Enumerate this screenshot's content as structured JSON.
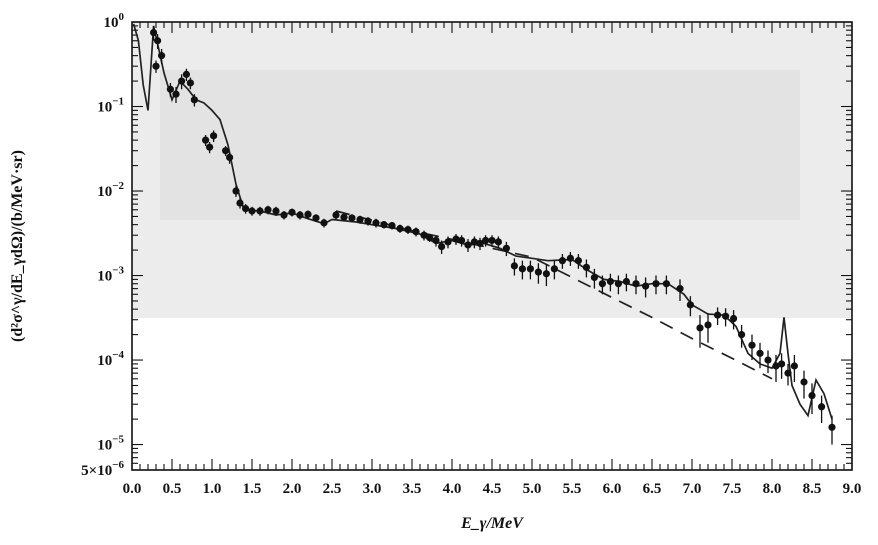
{
  "chart_data": {
    "type": "scatter",
    "title": "",
    "xlabel": "E_γ/MeV",
    "ylabel": "(d²σ^γ/dE_γdΩ)/(b/MeV·sr)",
    "xlim": [
      0,
      9
    ],
    "ylim": [
      5e-06,
      1
    ],
    "yscale": "log",
    "grid": false,
    "legend": "none",
    "x_ticks": [
      {
        "value": 0.0,
        "label": "0.0"
      },
      {
        "value": 0.5,
        "label": "0.5"
      },
      {
        "value": 1.0,
        "label": "1.0"
      },
      {
        "value": 1.5,
        "label": "1.5"
      },
      {
        "value": 2.0,
        "label": "2.0"
      },
      {
        "value": 2.5,
        "label": "2.5"
      },
      {
        "value": 3.0,
        "label": "3.0"
      },
      {
        "value": 3.5,
        "label": "3.5"
      },
      {
        "value": 4.0,
        "label": "4.0"
      },
      {
        "value": 4.5,
        "label": "4.5"
      },
      {
        "value": 5.0,
        "label": "5.0"
      },
      {
        "value": 5.5,
        "label": "5.5"
      },
      {
        "value": 6.0,
        "label": "6.0"
      },
      {
        "value": 6.5,
        "label": "6.5"
      },
      {
        "value": 7.0,
        "label": "7.0"
      },
      {
        "value": 7.5,
        "label": "7.5"
      },
      {
        "value": 8.0,
        "label": "8.0"
      },
      {
        "value": 8.5,
        "label": "8.5"
      },
      {
        "value": 9.0,
        "label": "9.0"
      }
    ],
    "y_ticks": [
      {
        "value": 1,
        "base": "10",
        "exp": "0"
      },
      {
        "value": 0.1,
        "base": "10",
        "exp": "−1"
      },
      {
        "value": 0.01,
        "base": "10",
        "exp": "−2"
      },
      {
        "value": 0.001,
        "base": "10",
        "exp": "−3"
      },
      {
        "value": 0.0001,
        "base": "10",
        "exp": "−4"
      },
      {
        "value": 1e-05,
        "base": "10",
        "exp": "−5"
      },
      {
        "value": 5e-06,
        "base": "5×10",
        "exp": "−6"
      }
    ],
    "series": [
      {
        "style": "markers-with-error-bars",
        "color": "#111111",
        "points": [
          {
            "x": 0.27,
            "y": 0.75,
            "err": 0.15
          },
          {
            "x": 0.32,
            "y": 0.6,
            "err": 0.12
          },
          {
            "x": 0.37,
            "y": 0.4,
            "err": 0.08
          },
          {
            "x": 0.3,
            "y": 0.3,
            "err": 0.05
          },
          {
            "x": 0.48,
            "y": 0.16,
            "err": 0.03
          },
          {
            "x": 0.55,
            "y": 0.14,
            "err": 0.03
          },
          {
            "x": 0.62,
            "y": 0.2,
            "err": 0.04
          },
          {
            "x": 0.68,
            "y": 0.24,
            "err": 0.04
          },
          {
            "x": 0.73,
            "y": 0.19,
            "err": 0.03
          },
          {
            "x": 0.78,
            "y": 0.12,
            "err": 0.02
          },
          {
            "x": 0.92,
            "y": 0.04,
            "err": 0.006
          },
          {
            "x": 0.97,
            "y": 0.033,
            "err": 0.005
          },
          {
            "x": 1.02,
            "y": 0.045,
            "err": 0.007
          },
          {
            "x": 1.17,
            "y": 0.03,
            "err": 0.004
          },
          {
            "x": 1.22,
            "y": 0.025,
            "err": 0.004
          },
          {
            "x": 1.3,
            "y": 0.01,
            "err": 0.0015
          },
          {
            "x": 1.35,
            "y": 0.0072,
            "err": 0.001
          },
          {
            "x": 1.42,
            "y": 0.0062,
            "err": 0.0008
          },
          {
            "x": 1.5,
            "y": 0.0058,
            "err": 0.0007
          },
          {
            "x": 1.6,
            "y": 0.0058,
            "err": 0.0007
          },
          {
            "x": 1.7,
            "y": 0.006,
            "err": 0.0007
          },
          {
            "x": 1.8,
            "y": 0.0058,
            "err": 0.0007
          },
          {
            "x": 1.9,
            "y": 0.0052,
            "err": 0.0006
          },
          {
            "x": 2.0,
            "y": 0.0056,
            "err": 0.0006
          },
          {
            "x": 2.1,
            "y": 0.0052,
            "err": 0.0006
          },
          {
            "x": 2.2,
            "y": 0.0053,
            "err": 0.0006
          },
          {
            "x": 2.3,
            "y": 0.0048,
            "err": 0.0005
          },
          {
            "x": 2.4,
            "y": 0.0042,
            "err": 0.0005
          },
          {
            "x": 2.55,
            "y": 0.0052,
            "err": 0.0006
          },
          {
            "x": 2.65,
            "y": 0.0049,
            "err": 0.0005
          },
          {
            "x": 2.75,
            "y": 0.0048,
            "err": 0.0005
          },
          {
            "x": 2.85,
            "y": 0.0046,
            "err": 0.0005
          },
          {
            "x": 2.95,
            "y": 0.0044,
            "err": 0.0005
          },
          {
            "x": 3.05,
            "y": 0.0042,
            "err": 0.0005
          },
          {
            "x": 3.15,
            "y": 0.004,
            "err": 0.0004
          },
          {
            "x": 3.25,
            "y": 0.0039,
            "err": 0.0004
          },
          {
            "x": 3.35,
            "y": 0.0036,
            "err": 0.0004
          },
          {
            "x": 3.45,
            "y": 0.0035,
            "err": 0.0004
          },
          {
            "x": 3.55,
            "y": 0.0033,
            "err": 0.0004
          },
          {
            "x": 3.65,
            "y": 0.003,
            "err": 0.0004
          },
          {
            "x": 3.72,
            "y": 0.0028,
            "err": 0.0003
          },
          {
            "x": 3.8,
            "y": 0.0026,
            "err": 0.0004
          },
          {
            "x": 3.87,
            "y": 0.0022,
            "err": 0.0004
          },
          {
            "x": 3.95,
            "y": 0.0025,
            "err": 0.0004
          },
          {
            "x": 4.05,
            "y": 0.0027,
            "err": 0.0004
          },
          {
            "x": 4.12,
            "y": 0.0026,
            "err": 0.0004
          },
          {
            "x": 4.2,
            "y": 0.0023,
            "err": 0.0004
          },
          {
            "x": 4.28,
            "y": 0.0025,
            "err": 0.0004
          },
          {
            "x": 4.35,
            "y": 0.0024,
            "err": 0.0004
          },
          {
            "x": 4.42,
            "y": 0.0026,
            "err": 0.0004
          },
          {
            "x": 4.5,
            "y": 0.0026,
            "err": 0.0004
          },
          {
            "x": 4.58,
            "y": 0.0025,
            "err": 0.0004
          },
          {
            "x": 4.68,
            "y": 0.0021,
            "err": 0.0004
          },
          {
            "x": 4.78,
            "y": 0.0013,
            "err": 0.0003
          },
          {
            "x": 4.88,
            "y": 0.0012,
            "err": 0.0003
          },
          {
            "x": 4.98,
            "y": 0.0012,
            "err": 0.0003
          },
          {
            "x": 5.08,
            "y": 0.0011,
            "err": 0.0003
          },
          {
            "x": 5.18,
            "y": 0.00105,
            "err": 0.0003
          },
          {
            "x": 5.28,
            "y": 0.0012,
            "err": 0.0003
          },
          {
            "x": 5.38,
            "y": 0.0015,
            "err": 0.0003
          },
          {
            "x": 5.48,
            "y": 0.0016,
            "err": 0.0003
          },
          {
            "x": 5.58,
            "y": 0.0015,
            "err": 0.0003
          },
          {
            "x": 5.68,
            "y": 0.00125,
            "err": 0.0003
          },
          {
            "x": 5.78,
            "y": 0.00095,
            "err": 0.00025
          },
          {
            "x": 5.88,
            "y": 0.0008,
            "err": 0.0002
          },
          {
            "x": 5.98,
            "y": 0.00085,
            "err": 0.0002
          },
          {
            "x": 6.08,
            "y": 0.0008,
            "err": 0.0002
          },
          {
            "x": 6.18,
            "y": 0.00085,
            "err": 0.0002
          },
          {
            "x": 6.3,
            "y": 0.0008,
            "err": 0.0002
          },
          {
            "x": 6.42,
            "y": 0.00075,
            "err": 0.0002
          },
          {
            "x": 6.55,
            "y": 0.0008,
            "err": 0.0002
          },
          {
            "x": 6.68,
            "y": 0.0008,
            "err": 0.0002
          },
          {
            "x": 6.85,
            "y": 0.0007,
            "err": 0.0002
          },
          {
            "x": 6.98,
            "y": 0.00045,
            "err": 0.00012
          },
          {
            "x": 7.1,
            "y": 0.00024,
            "err": 0.0001
          },
          {
            "x": 7.2,
            "y": 0.00026,
            "err": 0.0001
          },
          {
            "x": 7.32,
            "y": 0.00034,
            "err": 8e-05
          },
          {
            "x": 7.42,
            "y": 0.00033,
            "err": 8e-05
          },
          {
            "x": 7.52,
            "y": 0.00031,
            "err": 8e-05
          },
          {
            "x": 7.62,
            "y": 0.0002,
            "err": 6e-05
          },
          {
            "x": 7.75,
            "y": 0.00015,
            "err": 5e-05
          },
          {
            "x": 7.85,
            "y": 0.00012,
            "err": 4e-05
          },
          {
            "x": 7.95,
            "y": 0.0001,
            "err": 3e-05
          },
          {
            "x": 8.05,
            "y": 8.5e-05,
            "err": 3e-05
          },
          {
            "x": 8.12,
            "y": 9e-05,
            "err": 3e-05
          },
          {
            "x": 8.2,
            "y": 7e-05,
            "err": 2e-05
          },
          {
            "x": 8.28,
            "y": 8.5e-05,
            "err": 3e-05
          },
          {
            "x": 8.4,
            "y": 5.5e-05,
            "err": 2e-05
          },
          {
            "x": 8.5,
            "y": 3.8e-05,
            "err": 1.5e-05
          },
          {
            "x": 8.62,
            "y": 2.8e-05,
            "err": 1e-05
          },
          {
            "x": 8.75,
            "y": 1.6e-05,
            "err": 6e-06
          }
        ]
      },
      {
        "style": "solid-line",
        "color": "#222222",
        "points": [
          {
            "x": 0.02,
            "y": 0.95
          },
          {
            "x": 0.08,
            "y": 0.6
          },
          {
            "x": 0.14,
            "y": 0.18
          },
          {
            "x": 0.2,
            "y": 0.09
          },
          {
            "x": 0.27,
            "y": 0.9
          },
          {
            "x": 0.33,
            "y": 0.5
          },
          {
            "x": 0.4,
            "y": 0.25
          },
          {
            "x": 0.5,
            "y": 0.12
          },
          {
            "x": 0.6,
            "y": 0.2
          },
          {
            "x": 0.7,
            "y": 0.16
          },
          {
            "x": 0.8,
            "y": 0.12
          },
          {
            "x": 0.9,
            "y": 0.11
          },
          {
            "x": 1.0,
            "y": 0.09
          },
          {
            "x": 1.1,
            "y": 0.07
          },
          {
            "x": 1.2,
            "y": 0.035
          },
          {
            "x": 1.3,
            "y": 0.012
          },
          {
            "x": 1.4,
            "y": 0.006
          },
          {
            "x": 1.6,
            "y": 0.0058
          },
          {
            "x": 1.8,
            "y": 0.0052
          },
          {
            "x": 2.0,
            "y": 0.0055
          },
          {
            "x": 2.2,
            "y": 0.0047
          },
          {
            "x": 2.4,
            "y": 0.0041
          },
          {
            "x": 2.5,
            "y": 0.0046
          },
          {
            "x": 2.8,
            "y": 0.0043
          },
          {
            "x": 3.0,
            "y": 0.004
          },
          {
            "x": 3.3,
            "y": 0.0036
          },
          {
            "x": 3.6,
            "y": 0.0031
          },
          {
            "x": 3.8,
            "y": 0.0024
          },
          {
            "x": 4.0,
            "y": 0.0026
          },
          {
            "x": 4.2,
            "y": 0.0023
          },
          {
            "x": 4.4,
            "y": 0.0024
          },
          {
            "x": 4.6,
            "y": 0.0021
          },
          {
            "x": 4.8,
            "y": 0.0017
          },
          {
            "x": 5.0,
            "y": 0.0016
          },
          {
            "x": 5.2,
            "y": 0.0015
          },
          {
            "x": 5.5,
            "y": 0.00155
          },
          {
            "x": 5.7,
            "y": 0.00115
          },
          {
            "x": 5.9,
            "y": 0.0009
          },
          {
            "x": 6.1,
            "y": 0.00085
          },
          {
            "x": 6.3,
            "y": 0.00075
          },
          {
            "x": 6.5,
            "y": 0.0008
          },
          {
            "x": 6.7,
            "y": 0.0008
          },
          {
            "x": 6.9,
            "y": 0.0006
          },
          {
            "x": 7.0,
            "y": 0.00045
          },
          {
            "x": 7.2,
            "y": 0.00035
          },
          {
            "x": 7.4,
            "y": 0.00034
          },
          {
            "x": 7.55,
            "y": 0.00025
          },
          {
            "x": 7.7,
            "y": 0.00012
          },
          {
            "x": 7.85,
            "y": 9e-05
          },
          {
            "x": 8.0,
            "y": 8e-05
          },
          {
            "x": 8.1,
            "y": 0.00012
          },
          {
            "x": 8.15,
            "y": 0.00032
          },
          {
            "x": 8.2,
            "y": 0.00012
          },
          {
            "x": 8.25,
            "y": 5e-05
          },
          {
            "x": 8.35,
            "y": 3e-05
          },
          {
            "x": 8.45,
            "y": 2.2e-05
          },
          {
            "x": 8.55,
            "y": 5.8e-05
          },
          {
            "x": 8.65,
            "y": 4e-05
          },
          {
            "x": 8.75,
            "y": 2e-05
          }
        ]
      },
      {
        "style": "dashed-line",
        "color": "#222222",
        "points": [
          {
            "x": 2.55,
            "y": 0.0058
          },
          {
            "x": 3.5,
            "y": 0.0034
          },
          {
            "x": 4.5,
            "y": 0.0021
          },
          {
            "x": 5.0,
            "y": 0.00165
          },
          {
            "x": 5.5,
            "y": 0.00095
          },
          {
            "x": 6.0,
            "y": 0.00055
          },
          {
            "x": 6.5,
            "y": 0.00032
          },
          {
            "x": 7.0,
            "y": 0.00018
          },
          {
            "x": 7.5,
            "y": 0.000105
          },
          {
            "x": 8.0,
            "y": 6e-05
          }
        ]
      }
    ]
  }
}
